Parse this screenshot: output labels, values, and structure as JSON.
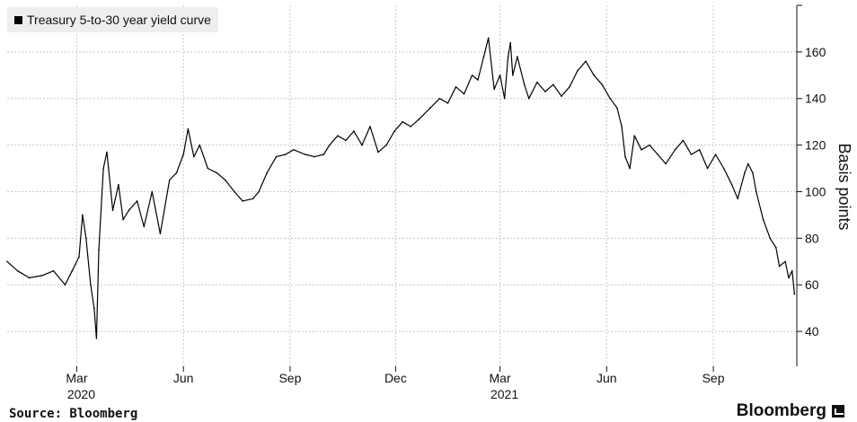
{
  "legend": {
    "label": "Treasury 5-to-30 year yield curve"
  },
  "source": "Source: Bloomberg",
  "brand": "Bloomberg",
  "chart_data": {
    "type": "line",
    "title": "",
    "ylabel": "Basis points",
    "ylim": [
      25,
      180
    ],
    "yticks": [
      40,
      60,
      80,
      100,
      120,
      140,
      160
    ],
    "xticks": [
      {
        "date": "2020-03-01",
        "label": "Mar",
        "year": "2020"
      },
      {
        "date": "2020-06-01",
        "label": "Jun",
        "year": ""
      },
      {
        "date": "2020-09-01",
        "label": "Sep",
        "year": ""
      },
      {
        "date": "2020-12-01",
        "label": "Dec",
        "year": ""
      },
      {
        "date": "2021-03-01",
        "label": "Mar",
        "year": "2021"
      },
      {
        "date": "2021-06-01",
        "label": "Jun",
        "year": ""
      },
      {
        "date": "2021-09-01",
        "label": "Sep",
        "year": ""
      }
    ],
    "xlim": [
      "2020-01-01",
      "2021-11-12"
    ],
    "grid": true,
    "line_color": "#000000",
    "series": [
      {
        "name": "Treasury 5-to-30 year yield curve",
        "points": [
          [
            "2020-01-01",
            70
          ],
          [
            "2020-01-10",
            66
          ],
          [
            "2020-01-20",
            63
          ],
          [
            "2020-01-31",
            64
          ],
          [
            "2020-02-10",
            66
          ],
          [
            "2020-02-20",
            60
          ],
          [
            "2020-02-26",
            66
          ],
          [
            "2020-03-03",
            72
          ],
          [
            "2020-03-06",
            90
          ],
          [
            "2020-03-09",
            80
          ],
          [
            "2020-03-13",
            60
          ],
          [
            "2020-03-16",
            50
          ],
          [
            "2020-03-18",
            37
          ],
          [
            "2020-03-20",
            75
          ],
          [
            "2020-03-24",
            110
          ],
          [
            "2020-03-27",
            117
          ],
          [
            "2020-04-01",
            92
          ],
          [
            "2020-04-06",
            103
          ],
          [
            "2020-04-10",
            88
          ],
          [
            "2020-04-15",
            92
          ],
          [
            "2020-04-22",
            96
          ],
          [
            "2020-04-28",
            85
          ],
          [
            "2020-05-05",
            100
          ],
          [
            "2020-05-12",
            82
          ],
          [
            "2020-05-20",
            105
          ],
          [
            "2020-05-26",
            108
          ],
          [
            "2020-06-01",
            116
          ],
          [
            "2020-06-05",
            127
          ],
          [
            "2020-06-10",
            115
          ],
          [
            "2020-06-15",
            120
          ],
          [
            "2020-06-22",
            110
          ],
          [
            "2020-06-30",
            108
          ],
          [
            "2020-07-07",
            105
          ],
          [
            "2020-07-15",
            100
          ],
          [
            "2020-07-22",
            96
          ],
          [
            "2020-07-31",
            97
          ],
          [
            "2020-08-05",
            100
          ],
          [
            "2020-08-12",
            108
          ],
          [
            "2020-08-20",
            115
          ],
          [
            "2020-08-28",
            116
          ],
          [
            "2020-09-04",
            118
          ],
          [
            "2020-09-14",
            116
          ],
          [
            "2020-09-22",
            115
          ],
          [
            "2020-09-30",
            116
          ],
          [
            "2020-10-05",
            120
          ],
          [
            "2020-10-12",
            124
          ],
          [
            "2020-10-19",
            122
          ],
          [
            "2020-10-26",
            126
          ],
          [
            "2020-11-02",
            120
          ],
          [
            "2020-11-09",
            128
          ],
          [
            "2020-11-16",
            117
          ],
          [
            "2020-11-23",
            120
          ],
          [
            "2020-11-30",
            126
          ],
          [
            "2020-12-07",
            130
          ],
          [
            "2020-12-14",
            128
          ],
          [
            "2020-12-21",
            131
          ],
          [
            "2020-12-31",
            136
          ],
          [
            "2021-01-08",
            140
          ],
          [
            "2021-01-15",
            138
          ],
          [
            "2021-01-22",
            145
          ],
          [
            "2021-01-29",
            142
          ],
          [
            "2021-02-05",
            150
          ],
          [
            "2021-02-10",
            148
          ],
          [
            "2021-02-15",
            158
          ],
          [
            "2021-02-19",
            166
          ],
          [
            "2021-02-24",
            144
          ],
          [
            "2021-03-01",
            150
          ],
          [
            "2021-03-05",
            140
          ],
          [
            "2021-03-08",
            158
          ],
          [
            "2021-03-10",
            164
          ],
          [
            "2021-03-12",
            150
          ],
          [
            "2021-03-16",
            158
          ],
          [
            "2021-03-22",
            146
          ],
          [
            "2021-03-26",
            140
          ],
          [
            "2021-04-02",
            147
          ],
          [
            "2021-04-09",
            143
          ],
          [
            "2021-04-16",
            146
          ],
          [
            "2021-04-23",
            141
          ],
          [
            "2021-04-30",
            145
          ],
          [
            "2021-05-07",
            152
          ],
          [
            "2021-05-14",
            156
          ],
          [
            "2021-05-21",
            150
          ],
          [
            "2021-05-28",
            146
          ],
          [
            "2021-06-04",
            140
          ],
          [
            "2021-06-10",
            136
          ],
          [
            "2021-06-14",
            128
          ],
          [
            "2021-06-17",
            115
          ],
          [
            "2021-06-21",
            110
          ],
          [
            "2021-06-25",
            124
          ],
          [
            "2021-07-01",
            118
          ],
          [
            "2021-07-08",
            120
          ],
          [
            "2021-07-15",
            116
          ],
          [
            "2021-07-22",
            112
          ],
          [
            "2021-07-30",
            118
          ],
          [
            "2021-08-06",
            122
          ],
          [
            "2021-08-13",
            116
          ],
          [
            "2021-08-20",
            118
          ],
          [
            "2021-08-27",
            110
          ],
          [
            "2021-09-03",
            116
          ],
          [
            "2021-09-10",
            110
          ],
          [
            "2021-09-17",
            103
          ],
          [
            "2021-09-22",
            97
          ],
          [
            "2021-09-28",
            108
          ],
          [
            "2021-10-01",
            112
          ],
          [
            "2021-10-05",
            108
          ],
          [
            "2021-10-08",
            100
          ],
          [
            "2021-10-14",
            88
          ],
          [
            "2021-10-20",
            80
          ],
          [
            "2021-10-25",
            76
          ],
          [
            "2021-10-28",
            68
          ],
          [
            "2021-11-02",
            70
          ],
          [
            "2021-11-05",
            63
          ],
          [
            "2021-11-08",
            66
          ],
          [
            "2021-11-10",
            56
          ]
        ]
      }
    ]
  }
}
